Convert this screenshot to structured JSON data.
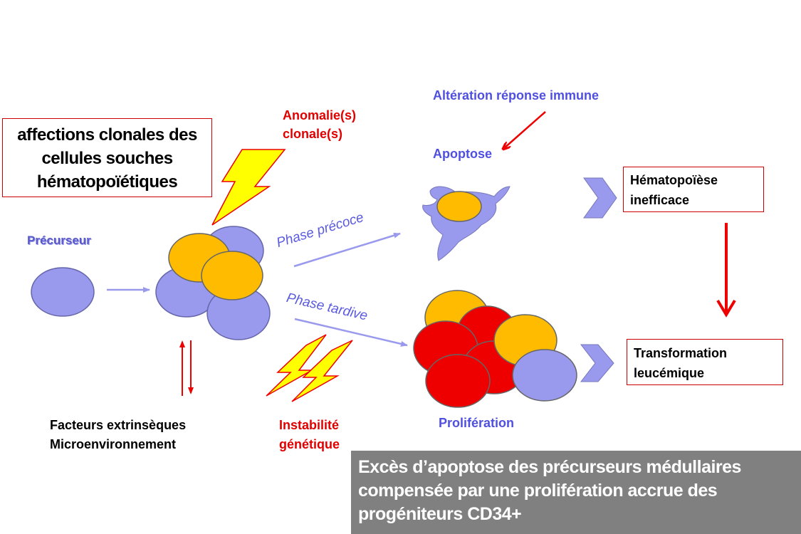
{
  "title_box": {
    "lines": [
      "affections clonales des",
      "cellules souches",
      "hématopoïétiques"
    ]
  },
  "labels": {
    "precurseur": "Précurseur",
    "anomalies_line1": "Anomalie(s)",
    "anomalies_line2": "clonale(s)",
    "alteration": "Altération réponse immune",
    "apoptose": "Apoptose",
    "phase_precoce": "Phase précoce",
    "phase_tardive": "Phase tardive",
    "facteurs_line1": "Facteurs extrinsèques",
    "facteurs_line2": "Microenvironnement",
    "instabilite_line1": "Instabilité",
    "instabilite_line2": "génétique",
    "proliferation": "Prolifération"
  },
  "boxes": {
    "hematopoiese": [
      "Hématopoïèse",
      "inefficace"
    ],
    "transformation": [
      "Transformation",
      "leucémique"
    ]
  },
  "summary": {
    "lines": [
      "Excès d’apoptose des précurseurs médullaires",
      "compensée par une prolifération accrue des",
      "progéniteurs CD34+"
    ]
  },
  "colors": {
    "cell_blue": "#9999ee",
    "cell_orange": "#ffbb00",
    "cell_red": "#ee0000",
    "arrow_blue": "#9999ee",
    "arrow_red": "#ee0000",
    "lightning_yellow": "#ffff00",
    "text_red": "#e00000",
    "text_blue": "#5050e0",
    "summary_bg": "#808080"
  }
}
